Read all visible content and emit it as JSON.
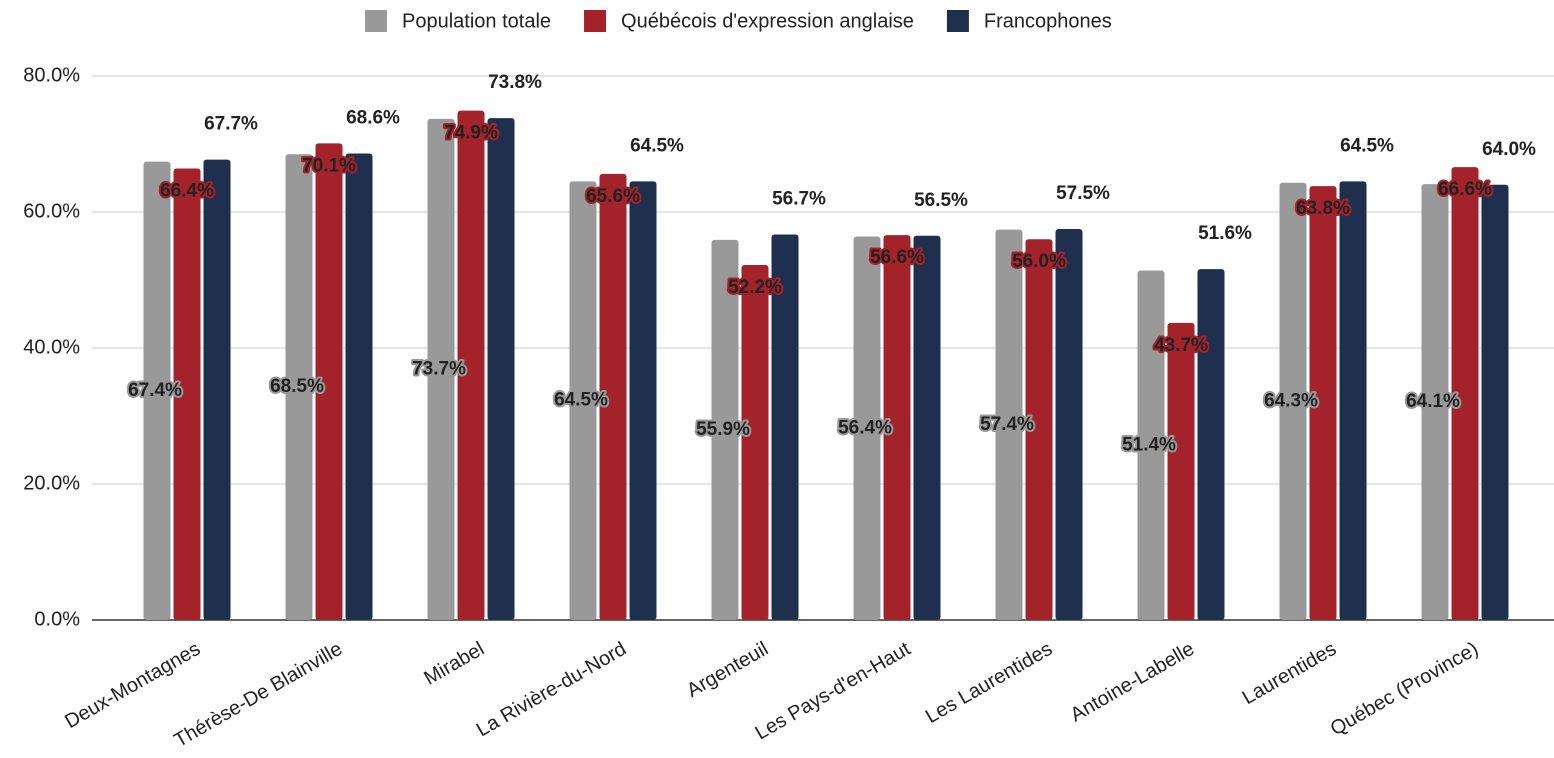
{
  "chart_data": {
    "type": "bar",
    "categories": [
      "Deux-Montagnes",
      "Thérèse-De Blainville",
      "Mirabel",
      "La Rivière-du-Nord",
      "Argenteuil",
      "Les Pays-d'en-Haut",
      "Les Laurentides",
      "Antoine-Labelle",
      "Laurentides",
      "Québec (Province)"
    ],
    "series": [
      {
        "name": "Population totale",
        "color": "#999999",
        "values": [
          67.4,
          68.5,
          73.7,
          64.5,
          55.9,
          56.4,
          57.4,
          51.4,
          64.3,
          64.1
        ],
        "value_labels": [
          "67.4%",
          "68.5%",
          "73.7%",
          "64.5%",
          "55.9%",
          "56.4%",
          "57.4%",
          "51.4%",
          "64.3%",
          "64.1%"
        ]
      },
      {
        "name": "Québécois d'expression anglaise",
        "color": "#a4232b",
        "values": [
          66.4,
          70.1,
          74.9,
          65.6,
          52.2,
          56.6,
          56.0,
          43.7,
          63.8,
          66.6
        ],
        "value_labels": [
          "66.4%",
          "70.1%",
          "74.9%",
          "65.6%",
          "52.2%",
          "56.6%",
          "56.0%",
          "43.7%",
          "63.8%",
          "66.6%"
        ]
      },
      {
        "name": "Francophones",
        "color": "#1f2f4e",
        "values": [
          67.7,
          68.6,
          73.8,
          64.5,
          56.7,
          56.5,
          57.5,
          51.6,
          64.5,
          64.0
        ],
        "value_labels": [
          "67.7%",
          "68.6%",
          "73.8%",
          "64.5%",
          "56.7%",
          "56.5%",
          "57.5%",
          "51.6%",
          "64.5%",
          "64.0%"
        ]
      }
    ],
    "ylim": [
      0,
      80
    ],
    "yticks": [
      {
        "value": 0,
        "label": "0.0%"
      },
      {
        "value": 20,
        "label": "20.0%"
      },
      {
        "value": 40,
        "label": "40.0%"
      },
      {
        "value": 60,
        "label": "60.0%"
      },
      {
        "value": 80,
        "label": "80.0%"
      }
    ],
    "grid": true,
    "legend": "top"
  }
}
